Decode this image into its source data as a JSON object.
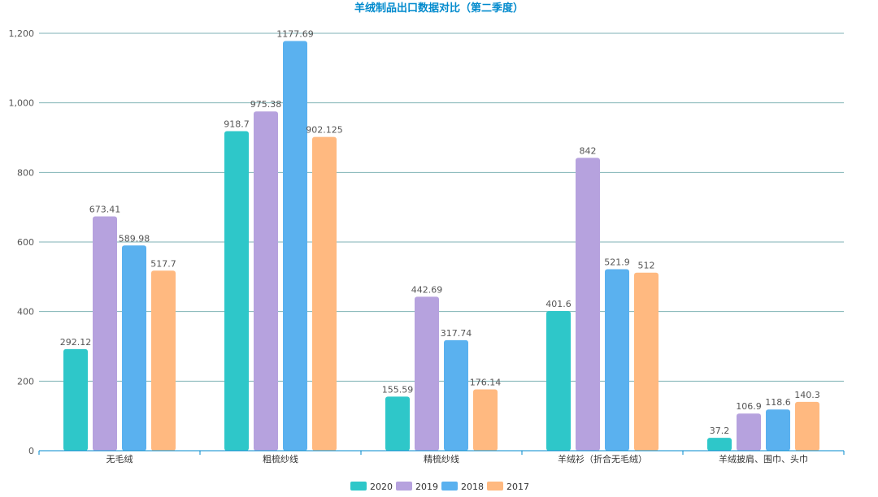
{
  "chart_data": {
    "type": "bar",
    "title": "羊绒制品出口数据对比（第二季度）",
    "categories": [
      "无毛绒",
      "粗梳纱线",
      "精梳纱线",
      "羊绒衫（折合无毛绒）",
      "羊绒披肩、围巾、头巾"
    ],
    "series": [
      {
        "name": "2020",
        "color": "#2ec7c9",
        "values": [
          292.12,
          918.7,
          155.59,
          401.6,
          37.2
        ]
      },
      {
        "name": "2019",
        "color": "#b6a2de",
        "values": [
          673.41,
          975.38,
          442.69,
          842,
          106.9
        ]
      },
      {
        "name": "2018",
        "color": "#5ab1ef",
        "values": [
          589.98,
          1177.69,
          317.74,
          521.9,
          118.6
        ]
      },
      {
        "name": "2017",
        "color": "#ffb980",
        "values": [
          517.7,
          902.125,
          176.14,
          512,
          140.3
        ]
      }
    ],
    "ylim": [
      0,
      1200
    ],
    "yticks": [
      0,
      200,
      400,
      600,
      800,
      1000,
      1200
    ],
    "ytick_labels": [
      "0",
      "200",
      "400",
      "600",
      "800",
      "1,000",
      "1,200"
    ],
    "grid": true,
    "legend_position": "bottom-center",
    "title_color": "#008acd",
    "grid_color": "#7fb2b4",
    "axis_color": "#008acd"
  }
}
